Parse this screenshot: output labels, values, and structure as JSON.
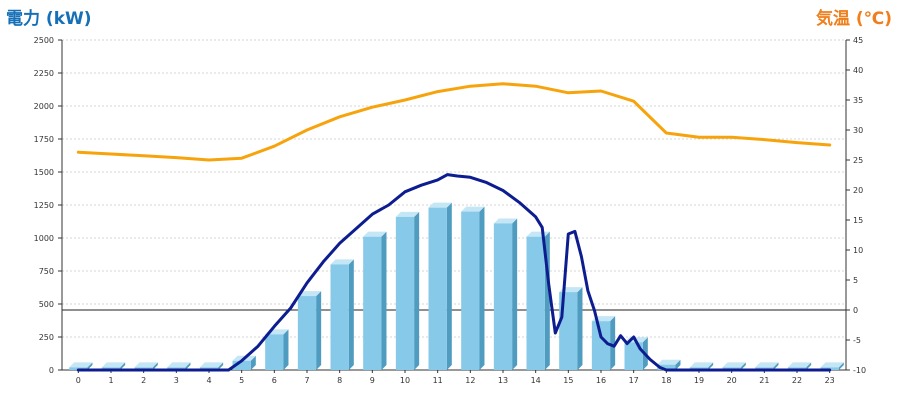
{
  "chart_data": {
    "type": "bar",
    "title_left": "電力 (kW)",
    "title_right": "気温 (℃)",
    "categories": [
      "0",
      "1",
      "2",
      "3",
      "4",
      "5",
      "6",
      "7",
      "8",
      "9",
      "10",
      "11",
      "12",
      "13",
      "14",
      "15",
      "16",
      "17",
      "18",
      "19",
      "20",
      "21",
      "22",
      "23"
    ],
    "y_left": {
      "range": [
        0,
        2500
      ],
      "ticks": [
        "0",
        "250",
        "500",
        "750",
        "1000",
        "1250",
        "1500",
        "1750",
        "2000",
        "2250",
        "2500"
      ]
    },
    "y_right": {
      "range": [
        -10,
        45
      ],
      "ticks": [
        "-10",
        "-5",
        "0",
        "5",
        "10",
        "15",
        "20",
        "25",
        "30",
        "35",
        "40",
        "45"
      ]
    },
    "grid": true,
    "series": [
      {
        "kind": "bar",
        "axis": "left",
        "color": "#86c9e8",
        "values": [
          20,
          20,
          20,
          20,
          20,
          70,
          270,
          560,
          800,
          1010,
          1160,
          1230,
          1200,
          1110,
          1010,
          590,
          370,
          210,
          40,
          20,
          20,
          20,
          20,
          20
        ]
      },
      {
        "kind": "line",
        "axis": "left",
        "color": "#0d1d8f",
        "x": [
          0,
          1,
          2,
          3,
          4,
          4.6,
          5,
          5.5,
          6,
          6.5,
          7,
          7.5,
          8,
          8.5,
          9,
          9.5,
          10,
          10.5,
          11,
          11.3,
          11.6,
          12,
          12.5,
          13,
          13.5,
          14,
          14.2,
          14.4,
          14.6,
          14.8,
          15,
          15.2,
          15.4,
          15.6,
          15.8,
          16,
          16.2,
          16.4,
          16.6,
          16.8,
          17,
          17.2,
          17.5,
          17.8,
          18,
          19,
          20,
          21,
          22,
          23
        ],
        "values": [
          0,
          0,
          0,
          0,
          0,
          0,
          70,
          180,
          330,
          470,
          660,
          820,
          960,
          1070,
          1180,
          1250,
          1350,
          1400,
          1440,
          1480,
          1470,
          1460,
          1420,
          1360,
          1270,
          1160,
          1080,
          650,
          280,
          400,
          1030,
          1050,
          860,
          600,
          450,
          250,
          200,
          180,
          260,
          200,
          250,
          160,
          80,
          20,
          0,
          0,
          0,
          0,
          0,
          0
        ]
      },
      {
        "kind": "line",
        "axis": "right",
        "color": "#f7a30c",
        "x": [
          0,
          1,
          2,
          3,
          4,
          5,
          6,
          7,
          8,
          9,
          10,
          11,
          12,
          13,
          14,
          15,
          16,
          17,
          18,
          19,
          20,
          21,
          22,
          23
        ],
        "values": [
          26.3,
          26.0,
          25.7,
          25.4,
          25.0,
          25.3,
          27.3,
          30.0,
          32.2,
          33.8,
          35.0,
          36.4,
          37.3,
          37.7,
          37.3,
          36.2,
          36.5,
          34.8,
          29.5,
          28.8,
          28.8,
          28.4,
          27.9,
          27.5
        ]
      }
    ]
  }
}
